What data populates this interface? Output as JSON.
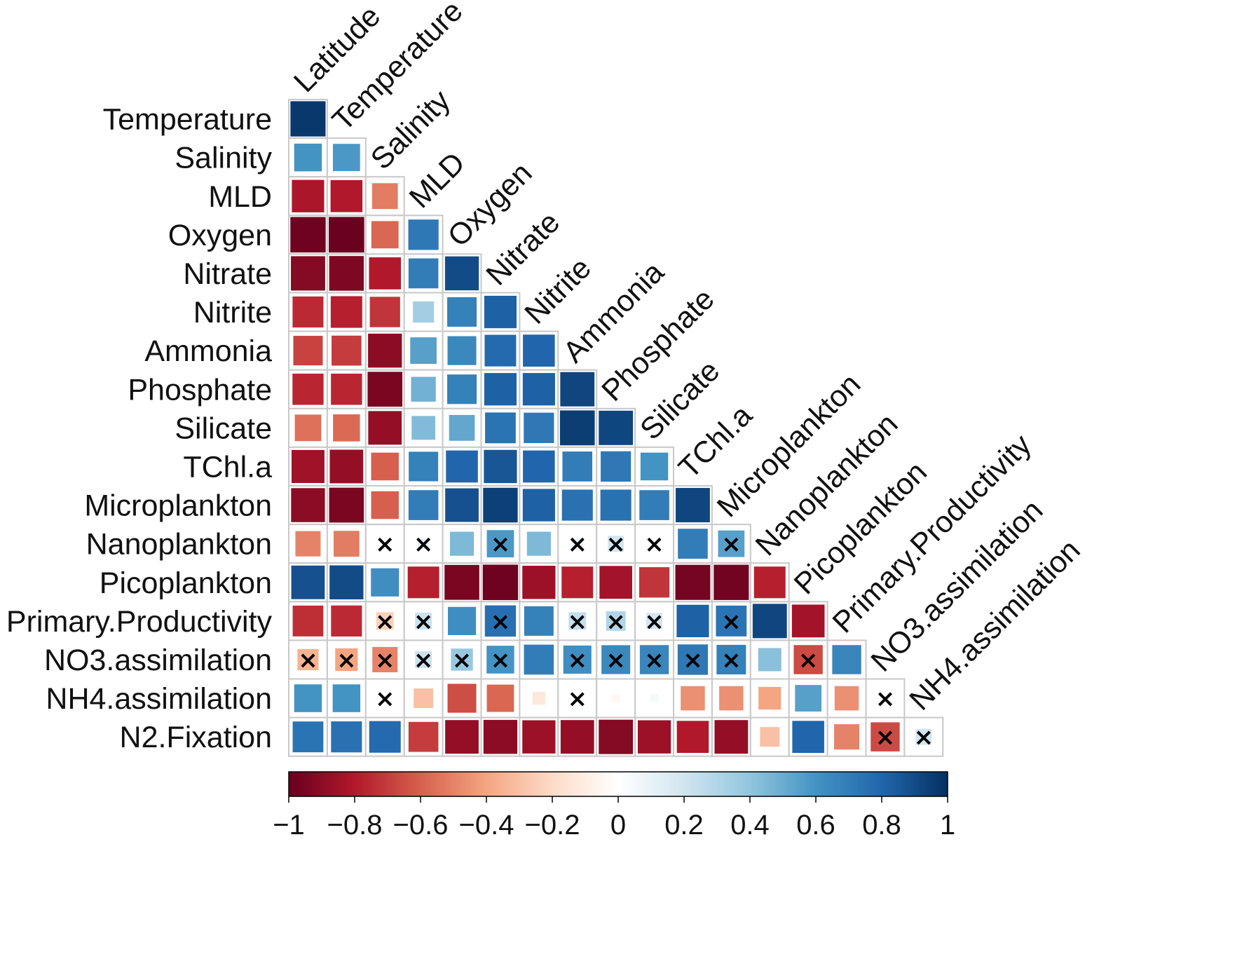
{
  "chart_data": {
    "type": "heatmap",
    "subtype": "lower-triangular correlation matrix (corrplot, square method)",
    "row_labels": [
      "Temperature",
      "Salinity",
      "MLD",
      "Oxygen",
      "Nitrate",
      "Nitrite",
      "Ammonia",
      "Phosphate",
      "Silicate",
      "TChl.a",
      "Microplankton",
      "Nanoplankton",
      "Picoplankton",
      "Primary.Productivity",
      "NO3.assimilation",
      "NH4.assimilation",
      "N2.Fixation"
    ],
    "col_labels": [
      "Latitude",
      "Temperature",
      "Salinity",
      "MLD",
      "Oxygen",
      "Nitrate",
      "Nitrite",
      "Ammonia",
      "Phosphate",
      "Silicate",
      "TChl.a",
      "Microplankton",
      "Nanoplankton",
      "Picoplankton",
      "Primary.Productivity",
      "NO3.assimilation",
      "NH4.assimilation"
    ],
    "values": [
      [
        0.97
      ],
      [
        0.6,
        0.58
      ],
      [
        -0.82,
        -0.8,
        -0.52
      ],
      [
        -0.98,
        -0.99,
        -0.58,
        0.72
      ],
      [
        -0.92,
        -0.94,
        -0.8,
        0.7,
        0.9
      ],
      [
        -0.75,
        -0.78,
        -0.72,
        0.35,
        0.68,
        0.82
      ],
      [
        -0.68,
        -0.7,
        -0.9,
        0.55,
        0.65,
        0.78,
        0.8
      ],
      [
        -0.76,
        -0.76,
        -0.95,
        0.48,
        0.68,
        0.82,
        0.82,
        0.92
      ],
      [
        -0.55,
        -0.57,
        -0.88,
        0.44,
        0.52,
        0.74,
        0.72,
        0.95,
        0.92
      ],
      [
        -0.85,
        -0.88,
        -0.6,
        0.68,
        0.8,
        0.86,
        0.8,
        0.7,
        0.72,
        0.6
      ],
      [
        -0.9,
        -0.95,
        -0.6,
        0.7,
        0.88,
        0.94,
        0.82,
        0.75,
        0.75,
        0.7,
        0.92
      ],
      [
        -0.5,
        -0.52,
        0.02,
        0.1,
        0.45,
        0.58,
        0.45,
        0.1,
        0.2,
        0.05,
        0.7,
        0.55
      ],
      [
        0.88,
        0.9,
        0.62,
        -0.78,
        -0.95,
        -0.98,
        -0.86,
        -0.78,
        -0.84,
        -0.72,
        -0.96,
        -0.97,
        -0.78
      ],
      [
        -0.74,
        -0.75,
        -0.24,
        0.22,
        0.62,
        0.76,
        0.68,
        0.24,
        0.3,
        0.2,
        0.82,
        0.74,
        0.92,
        -0.84
      ],
      [
        -0.35,
        -0.4,
        -0.5,
        0.22,
        0.38,
        0.6,
        0.7,
        0.62,
        0.65,
        0.66,
        0.72,
        0.68,
        0.42,
        -0.66,
        0.66
      ],
      [
        0.6,
        0.6,
        0.03,
        -0.3,
        -0.65,
        -0.58,
        -0.13,
        0.02,
        -0.05,
        0.05,
        -0.46,
        -0.46,
        -0.4,
        0.55,
        -0.46,
        0.03
      ],
      [
        0.74,
        0.75,
        0.78,
        -0.7,
        -0.88,
        -0.9,
        -0.86,
        -0.88,
        -0.92,
        -0.86,
        -0.8,
        -0.88,
        -0.3,
        0.8,
        -0.5,
        -0.66,
        0.2
      ]
    ],
    "not_significant": [
      [],
      [],
      [],
      [],
      [],
      [],
      [],
      [],
      [],
      [],
      [],
      [
        2,
        3,
        5,
        7,
        8,
        9,
        11
      ],
      [],
      [
        2,
        3,
        5,
        7,
        8,
        9,
        11
      ],
      [
        0,
        1,
        2,
        3,
        4,
        5,
        7,
        8,
        9,
        10,
        11,
        13
      ],
      [
        2,
        7,
        15
      ],
      [
        15,
        16
      ]
    ],
    "colorbar": {
      "range": [
        -1,
        1
      ],
      "ticks": [
        "−1",
        "−0.8",
        "−0.6",
        "−0.4",
        "−0.2",
        "0",
        "0.2",
        "0.4",
        "0.6",
        "0.8",
        "1"
      ],
      "colors": [
        "#67001F",
        "#B2182B",
        "#D6604D",
        "#F4A582",
        "#FDDBC7",
        "#FFFFFF",
        "#D1E5F0",
        "#92C5DE",
        "#4393C3",
        "#2166AC",
        "#053061"
      ]
    },
    "nonsig_marker": "×"
  }
}
